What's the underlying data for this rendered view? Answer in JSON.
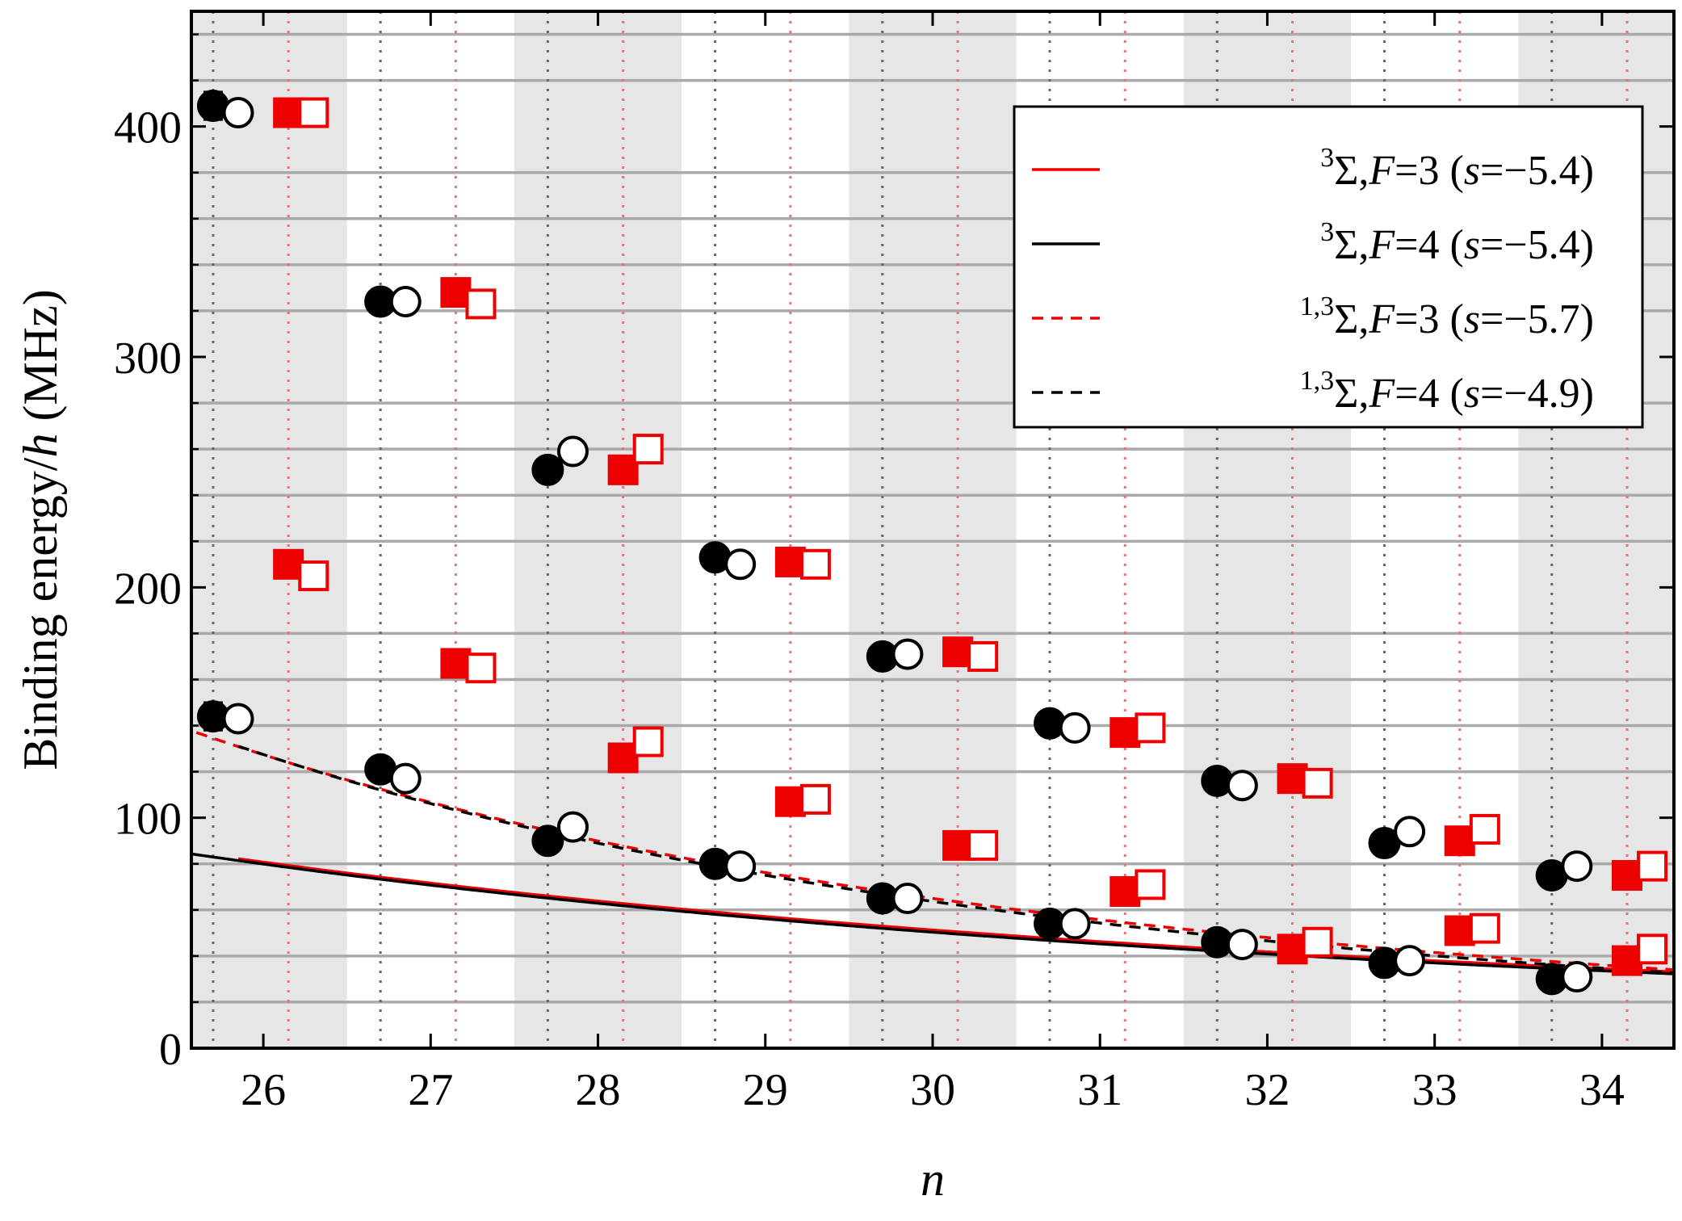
{
  "chart_data": {
    "type": "scatter",
    "xlabel": "n",
    "ylabel_parts": [
      "Binding energy/",
      "h",
      " (MHz)"
    ],
    "xlim": [
      25.57,
      34.43
    ],
    "ylim": [
      0,
      450
    ],
    "x_ticks": [
      26,
      27,
      28,
      29,
      30,
      31,
      32,
      33,
      34
    ],
    "y_ticks": [
      0,
      100,
      200,
      300,
      400
    ],
    "shaded_bands": [
      [
        25.57,
        26.5
      ],
      [
        27.5,
        28.5
      ],
      [
        29.5,
        30.5
      ],
      [
        31.5,
        32.5
      ],
      [
        33.5,
        34.43
      ]
    ],
    "horizontal_grid": [
      20,
      40,
      60,
      80,
      120,
      140,
      160,
      180,
      220,
      240,
      260,
      280,
      320,
      340,
      360,
      380,
      420,
      440
    ],
    "vertical_dotted_black": [
      25.7,
      26.7,
      27.7,
      28.7,
      29.7,
      30.7,
      31.7,
      32.7,
      33.7
    ],
    "vertical_dotted_red": [
      26.15,
      27.15,
      28.15,
      29.15,
      30.15,
      31.15,
      32.15,
      33.15,
      34.15
    ],
    "colors": {
      "red": "#ee0000",
      "black": "#000000",
      "band": "#e6e6e6",
      "grid": "#a9a9a9"
    },
    "legend": {
      "position": "top-right",
      "entries": [
        {
          "sup": "3",
          "sigma": "Σ",
          "F": "3",
          "s": "−5.4",
          "color": "#ee0000",
          "dash": "solid"
        },
        {
          "sup": "3",
          "sigma": "Σ",
          "F": "4",
          "s": "−5.4",
          "color": "#000000",
          "dash": "solid"
        },
        {
          "sup": "1,3",
          "sigma": "Σ",
          "F": "3",
          "s": "−5.7",
          "color": "#ee0000",
          "dash": "dashed"
        },
        {
          "sup": "1,3",
          "sigma": "Σ",
          "F": "4",
          "s": "−4.9",
          "color": "#000000",
          "dash": "dashed"
        }
      ]
    },
    "curves": [
      {
        "name": "3Σ, F=3",
        "color": "#ee0000",
        "dash": "solid",
        "C": 34.5,
        "p": 3.17,
        "xstart": 25.85
      },
      {
        "name": "3Σ, F=4",
        "color": "#000000",
        "dash": "solid",
        "C": 33.6,
        "p": 3.23,
        "xstart": 25.57
      },
      {
        "name": "1,3Σ, F=3",
        "color": "#ee0000",
        "dash": "dashed",
        "C": 36.1,
        "p": 4.7,
        "xstart": 25.6
      },
      {
        "name": "1,3Σ, F=4",
        "color": "#000000",
        "dash": "dashed",
        "C": 34.7,
        "p": 4.85,
        "xstart": 25.85
      }
    ],
    "series": [
      {
        "marker": "circle-filled",
        "group": "F=4 upper",
        "x": [
          25.7,
          26.7,
          27.7,
          28.7,
          29.7,
          30.7,
          31.7,
          32.7,
          33.7
        ],
        "y": [
          409,
          324,
          251,
          213,
          170,
          141,
          116,
          89,
          75
        ],
        "err": [
          6,
          0,
          0,
          0,
          0,
          0,
          0,
          0,
          5
        ]
      },
      {
        "marker": "circle-open",
        "group": "F=4 upper",
        "x": [
          25.85,
          26.85,
          27.85,
          28.85,
          29.85,
          30.85,
          31.85,
          32.85,
          33.85
        ],
        "y": [
          406,
          324,
          259,
          210,
          171,
          139,
          114,
          94,
          79
        ]
      },
      {
        "marker": "square-filled",
        "group": "F=3 upper",
        "x": [
          26.15,
          27.15,
          28.15,
          29.15,
          30.15,
          31.15,
          32.15,
          33.15,
          34.15
        ],
        "y": [
          406,
          328,
          251,
          211,
          172,
          137,
          117,
          90,
          75
        ]
      },
      {
        "marker": "square-open",
        "group": "F=3 upper",
        "x": [
          26.3,
          27.3,
          28.3,
          29.3,
          30.3,
          31.3,
          32.3,
          33.3,
          34.3
        ],
        "y": [
          406,
          323,
          260,
          210,
          170,
          139,
          115,
          95,
          79
        ]
      },
      {
        "marker": "circle-filled",
        "group": "F=4 lower",
        "x": [
          25.7,
          26.7,
          27.7,
          28.7,
          29.7,
          30.7,
          31.7,
          32.7,
          33.7
        ],
        "y": [
          144,
          121,
          90,
          80,
          65,
          54,
          46,
          37,
          30
        ],
        "err": [
          6,
          0,
          0,
          0,
          0,
          0,
          0,
          0,
          4
        ]
      },
      {
        "marker": "circle-open",
        "group": "F=4 lower",
        "x": [
          25.85,
          26.85,
          27.85,
          28.85,
          29.85,
          30.85,
          31.85,
          32.85,
          33.85
        ],
        "y": [
          143,
          117,
          96,
          79,
          65,
          54,
          45,
          38,
          31
        ]
      },
      {
        "marker": "square-filled",
        "group": "F=3 lower",
        "x": [
          26.15,
          27.15,
          28.15,
          29.15,
          30.15,
          31.15,
          32.15,
          33.15,
          34.15
        ],
        "y": [
          210,
          167,
          126,
          107,
          88,
          68,
          43,
          51,
          38
        ]
      },
      {
        "marker": "square-open",
        "group": "F=3 lower",
        "x": [
          26.3,
          27.3,
          28.3,
          29.3,
          30.3,
          31.3,
          32.3,
          33.3,
          34.3
        ],
        "y": [
          205,
          165,
          133,
          108,
          88,
          71,
          46,
          52,
          43
        ]
      }
    ]
  }
}
